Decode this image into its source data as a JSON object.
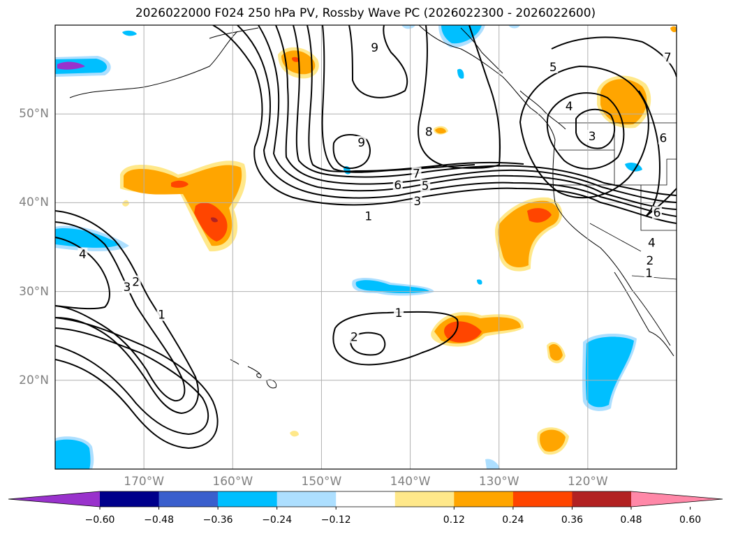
{
  "title": "2026022000 F024 250 hPa PV, Rossby Wave PC (2026022300 - 2026022600)",
  "map": {
    "lon_range": [
      -180,
      -110
    ],
    "lat_range": [
      10,
      60
    ],
    "lat_labels": [
      {
        "lat": 50,
        "text": "50°N"
      },
      {
        "lat": 40,
        "text": "40°N"
      },
      {
        "lat": 30,
        "text": "30°N"
      },
      {
        "lat": 20,
        "text": "20°N"
      }
    ],
    "lon_labels": [
      {
        "lon": -170,
        "text": "170°W"
      },
      {
        "lon": -160,
        "text": "160°W"
      },
      {
        "lon": -150,
        "text": "150°W"
      },
      {
        "lon": -140,
        "text": "140°W"
      },
      {
        "lon": -130,
        "text": "130°W"
      },
      {
        "lon": -120,
        "text": "120°W"
      }
    ],
    "contour_labels": [
      {
        "text": "1",
        "lon": -144.7,
        "lat": 38.5
      },
      {
        "text": "9",
        "lon": -144.0,
        "lat": 57.5
      },
      {
        "text": "8",
        "lon": -137.9,
        "lat": 48.0
      },
      {
        "text": "9",
        "lon": -145.5,
        "lat": 46.8
      },
      {
        "text": "7",
        "lon": -139.3,
        "lat": 43.3
      },
      {
        "text": "6",
        "lon": -141.4,
        "lat": 42.0
      },
      {
        "text": "5",
        "lon": -138.3,
        "lat": 41.9
      },
      {
        "text": "3",
        "lon": -139.2,
        "lat": 40.2
      },
      {
        "text": "5",
        "lon": -123.9,
        "lat": 55.3
      },
      {
        "text": "4",
        "lon": -122.1,
        "lat": 50.9
      },
      {
        "text": "3",
        "lon": -119.5,
        "lat": 47.5
      },
      {
        "text": "7",
        "lon": -111.0,
        "lat": 56.4
      },
      {
        "text": "6",
        "lon": -111.5,
        "lat": 47.3
      },
      {
        "text": "6",
        "lon": -112.2,
        "lat": 38.9
      },
      {
        "text": "4",
        "lon": -112.8,
        "lat": 35.5
      },
      {
        "text": "2",
        "lon": -113.0,
        "lat": 33.5
      },
      {
        "text": "1",
        "lon": -113.1,
        "lat": 32.1
      },
      {
        "text": "4",
        "lon": -176.9,
        "lat": 34.2
      },
      {
        "text": "3",
        "lon": -171.9,
        "lat": 30.5
      },
      {
        "text": "2",
        "lon": -170.9,
        "lat": 31.1
      },
      {
        "text": "1",
        "lon": -168.0,
        "lat": 27.4
      },
      {
        "text": "1",
        "lon": -141.3,
        "lat": 27.6
      },
      {
        "text": "2",
        "lon": -146.3,
        "lat": 24.9
      }
    ]
  },
  "colorbar": {
    "colors": [
      "#9932CC",
      "#00008B",
      "#3A5FCD",
      "#00BFFF",
      "#ADDFFF",
      "#FFFFFF",
      "#FFE88A",
      "#FFA500",
      "#FF4500",
      "#B22222",
      "#FF88A8"
    ],
    "ticks": [
      {
        "value": -0.6,
        "text": "−0.60"
      },
      {
        "value": -0.48,
        "text": "−0.48"
      },
      {
        "value": -0.36,
        "text": "−0.36"
      },
      {
        "value": -0.24,
        "text": "−0.24"
      },
      {
        "value": -0.12,
        "text": "−0.12"
      },
      {
        "value": 0.12,
        "text": "0.12"
      },
      {
        "value": 0.24,
        "text": "0.24"
      },
      {
        "value": 0.36,
        "text": "0.36"
      },
      {
        "value": 0.48,
        "text": "0.48"
      },
      {
        "value": 0.6,
        "text": "0.60"
      }
    ]
  }
}
